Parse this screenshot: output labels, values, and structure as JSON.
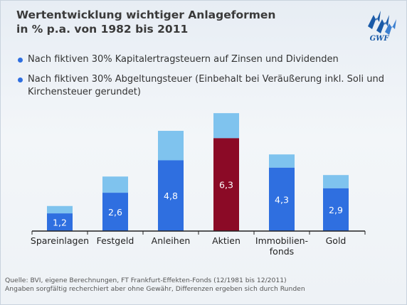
{
  "title_line1": "Wertentwicklung wichtiger Anlageformen",
  "title_line2": "in % p.a. von 1982 bis 2011",
  "logo_text": "GWF",
  "legend": [
    {
      "label": "Nach fiktiven 30% Kapitalertragsteuern auf Zinsen und Dividenden"
    },
    {
      "label": "Nach fiktiven 30% Abgeltungsteuer (Einbehalt bei Veräußerung inkl. Soli und Kirchensteuer gerundet)"
    }
  ],
  "footer": {
    "line1": "Quelle: BVI, eigene Berechnungen, FT Frankfurt-Effekten-Fonds (12/1981 bis 12/2011)",
    "line2": "Angaben sorgfältig recherchiert aber ohne Gewähr, Differenzen ergeben sich durch Runden"
  },
  "colors": {
    "dark_blue": "#2f6fe0",
    "light_blue": "#7fc3ee",
    "highlight": "#8b0a26",
    "axis": "#222222",
    "logo": "#1a5aa8"
  },
  "chart_data": {
    "type": "bar",
    "stacked": true,
    "categories": [
      "Spareinlagen",
      "Festgeld",
      "Anleihen",
      "Aktien",
      "Immobilien-fonds",
      "Gold"
    ],
    "category_lines": [
      [
        "Spareinlagen"
      ],
      [
        "Festgeld"
      ],
      [
        "Anleihen"
      ],
      [
        "Aktien"
      ],
      [
        "Immobilien-",
        "fonds"
      ],
      [
        "Gold"
      ]
    ],
    "series": [
      {
        "values": [
          1.2,
          2.6,
          4.8,
          6.3,
          4.3,
          2.9
        ],
        "labels": [
          "1,2",
          "2,6",
          "4,8",
          "6,3",
          "4,3",
          "2,9"
        ]
      },
      {
        "values": [
          0.5,
          1.1,
          2.0,
          1.7,
          0.9,
          0.9
        ]
      }
    ],
    "highlight_category": "Aktien",
    "ylim": [
      0,
      8.2
    ],
    "grid": false,
    "legend_position": "top"
  }
}
